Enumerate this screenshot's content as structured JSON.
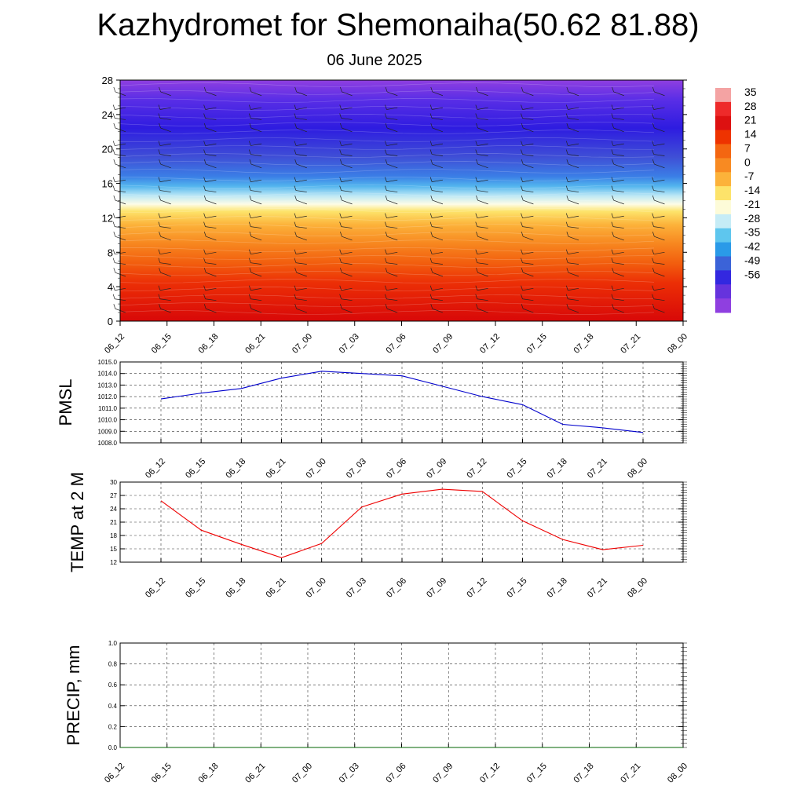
{
  "title": "Kazhydromet for Shemonaiha(50.62 81.88)",
  "subtitle": "06 June 2025",
  "time_labels": [
    "06_12",
    "06_15",
    "06_18",
    "06_21",
    "07_00",
    "07_03",
    "07_06",
    "07_09",
    "07_12",
    "07_15",
    "07_18",
    "07_21",
    "08_00"
  ],
  "colors": {
    "pmsl_line": "#0000cc",
    "temp_line": "#ee0000",
    "precip_line": "#006600",
    "grid": "#333333"
  },
  "chart_data": [
    {
      "type": "heatmap",
      "name": "cross-section",
      "title": "Kazhydromet for Shemonaiha(50.62 81.88)",
      "subtitle": "06 June 2025",
      "x": [
        "06_12",
        "06_15",
        "06_18",
        "06_21",
        "07_00",
        "07_03",
        "07_06",
        "07_09",
        "07_12",
        "07_15",
        "07_18",
        "07_21",
        "08_00"
      ],
      "ylim": [
        0,
        28
      ],
      "yticks": [
        0,
        4,
        8,
        12,
        16,
        20,
        24,
        28
      ],
      "colorbar": {
        "labels": [
          35,
          28,
          21,
          14,
          7,
          0,
          -7,
          -14,
          -21,
          -28,
          -35,
          -42,
          -49,
          -56
        ],
        "colors": [
          "#f4a3a3",
          "#ee2a2a",
          "#dd1111",
          "#ee3300",
          "#f46611",
          "#f88a22",
          "#fcb23a",
          "#fde36a",
          "#fdfbd8",
          "#c6ecf6",
          "#5ec6ee",
          "#2a9ae8",
          "#3b63d8",
          "#3328e0",
          "#6633dd",
          "#8f3fe0"
        ]
      },
      "barbs": "wind barbs"
    },
    {
      "type": "line",
      "ylabel": "PMSL",
      "ylim": [
        1008,
        1015
      ],
      "yticks": [
        "1008.0",
        "1009.0",
        "1010.0",
        "1011.0",
        "1012.0",
        "1013.0",
        "1014.0",
        "1015.0"
      ],
      "x": [
        "06_12",
        "06_15",
        "06_18",
        "06_21",
        "07_00",
        "07_03",
        "07_06",
        "07_09",
        "07_12",
        "07_15",
        "07_18",
        "07_21",
        "08_00"
      ],
      "values": [
        1011.8,
        1012.3,
        1012.7,
        1013.6,
        1014.2,
        1014.0,
        1013.8,
        1012.9,
        1012.0,
        1011.3,
        1009.6,
        1009.3,
        1008.9
      ]
    },
    {
      "type": "line",
      "ylabel": "TEMP at 2 M",
      "ylim": [
        12,
        30
      ],
      "yticks": [
        "12",
        "15",
        "18",
        "21",
        "24",
        "27",
        "30"
      ],
      "x": [
        "06_12",
        "06_15",
        "06_18",
        "06_21",
        "07_00",
        "07_03",
        "07_06",
        "07_09",
        "07_12",
        "07_15",
        "07_18",
        "07_21",
        "08_00"
      ],
      "values": [
        25.8,
        19.2,
        16.0,
        13.0,
        16.2,
        24.4,
        27.3,
        28.4,
        27.9,
        21.3,
        17.1,
        14.8,
        15.8
      ]
    },
    {
      "type": "line",
      "ylabel": "PRECIP, mm",
      "ylim": [
        0,
        1
      ],
      "yticks": [
        "0.0",
        "0.2",
        "0.4",
        "0.6",
        "0.8",
        "1.0"
      ],
      "x": [
        "06_12",
        "06_15",
        "06_18",
        "06_21",
        "07_00",
        "07_03",
        "07_06",
        "07_09",
        "07_12",
        "07_15",
        "07_18",
        "07_21",
        "08_00"
      ],
      "values": [
        0,
        0,
        0,
        0,
        0,
        0,
        0,
        0,
        0,
        0,
        0,
        0,
        0
      ]
    }
  ]
}
